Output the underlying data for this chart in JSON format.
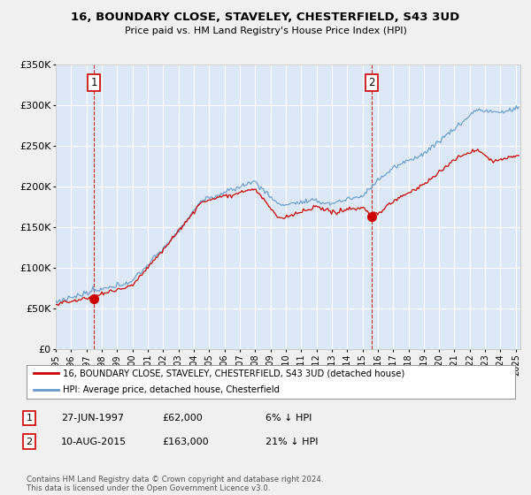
{
  "title": "16, BOUNDARY CLOSE, STAVELEY, CHESTERFIELD, S43 3UD",
  "subtitle": "Price paid vs. HM Land Registry's House Price Index (HPI)",
  "bg_color": "#f0f0f0",
  "plot_bg_color": "#dce8f5",
  "transaction1": {
    "date": "1997-06-27",
    "price": 62000,
    "label": "1",
    "x_year": 1997.49
  },
  "transaction2": {
    "date": "2015-08-10",
    "price": 163000,
    "label": "2",
    "x_year": 2015.61
  },
  "legend_line1": "16, BOUNDARY CLOSE, STAVELEY, CHESTERFIELD, S43 3UD (detached house)",
  "legend_line2": "HPI: Average price, detached house, Chesterfield",
  "note1_label": "1",
  "note1_date": "27-JUN-1997",
  "note1_price": "£62,000",
  "note1_hpi": "6% ↓ HPI",
  "note2_label": "2",
  "note2_date": "10-AUG-2015",
  "note2_price": "£163,000",
  "note2_hpi": "21% ↓ HPI",
  "footer": "Contains HM Land Registry data © Crown copyright and database right 2024.\nThis data is licensed under the Open Government Licence v3.0.",
  "hpi_color": "#6699cc",
  "price_color": "#cc0000",
  "dashed_color": "#cc0000",
  "ylim": [
    0,
    350000
  ],
  "xlim_start": 1995.0,
  "xlim_end": 2025.3
}
